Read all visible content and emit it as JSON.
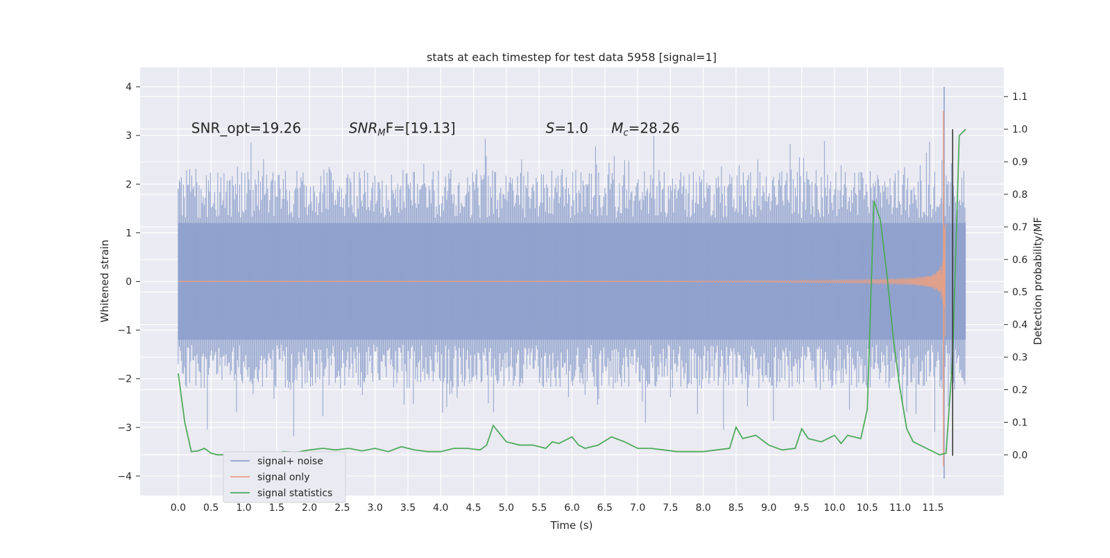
{
  "chart_data": {
    "type": "line",
    "title": "stats at each timestep for test data 5958 [signal=1]",
    "xlabel": "Time (s)",
    "ylabel": "Whitened strain",
    "y2label": "Detection probability/MF",
    "xlim": [
      -0.58,
      12.58
    ],
    "ylim": [
      -4.4,
      4.4
    ],
    "y2lim": [
      -0.125,
      1.19
    ],
    "grid": true,
    "legend_position": "lower-left",
    "x_ticks": [
      "0.0",
      "0.5",
      "1.0",
      "1.5",
      "2.0",
      "2.5",
      "3.0",
      "3.5",
      "4.0",
      "4.5",
      "5.0",
      "5.5",
      "6.0",
      "6.5",
      "7.0",
      "7.5",
      "8.0",
      "8.5",
      "9.0",
      "9.5",
      "10.0",
      "10.5",
      "11.0",
      "11.5"
    ],
    "y_ticks": [
      "4",
      "3",
      "2",
      "1",
      "0",
      "−1",
      "−2",
      "−3",
      "−4"
    ],
    "y2_ticks": [
      "1.1",
      "1.0",
      "0.9",
      "0.8",
      "0.7",
      "0.6",
      "0.5",
      "0.4",
      "0.3",
      "0.2",
      "0.1",
      "0.0"
    ],
    "annotations": [
      {
        "id": "snr-opt",
        "text": "SNR_opt=19.26",
        "x": 0.2,
        "y": 3.15
      },
      {
        "id": "snr-mf",
        "prefix": "SNR",
        "sub": "M",
        "suffix": "F=[19.13]",
        "x": 2.6,
        "y": 3.15
      },
      {
        "id": "s-value",
        "prefix": "S",
        "suffix": "=1.0",
        "x": 5.6,
        "y": 3.15
      },
      {
        "id": "mc-value",
        "prefix": "M",
        "sub": "c",
        "suffix": "=28.26",
        "x": 6.6,
        "y": 3.15
      }
    ],
    "vline": {
      "x": 11.8,
      "y2_from": -0.003,
      "y2_to": 1.0
    },
    "series": [
      {
        "name": "signal+ noise",
        "color": "#8da0cb",
        "amplitude_core": 1.2,
        "max": 4.0,
        "min": -4.05
      },
      {
        "name": "signal only",
        "color": "#e8a085",
        "peak": 3.5,
        "trough": -3.8
      },
      {
        "name": "signal statistics",
        "color": "#4daa5b",
        "axis": "right",
        "x": [
          0.0,
          0.1,
          0.2,
          0.3,
          0.4,
          0.5,
          0.6,
          0.8,
          1.0,
          1.2,
          1.4,
          1.6,
          1.8,
          2.0,
          2.2,
          2.4,
          2.6,
          2.8,
          3.0,
          3.2,
          3.4,
          3.6,
          3.8,
          4.0,
          4.2,
          4.4,
          4.6,
          4.7,
          4.8,
          5.0,
          5.2,
          5.4,
          5.6,
          5.7,
          5.8,
          6.0,
          6.1,
          6.2,
          6.4,
          6.6,
          6.8,
          7.0,
          7.2,
          7.4,
          7.6,
          7.8,
          8.0,
          8.2,
          8.4,
          8.5,
          8.6,
          8.8,
          9.0,
          9.2,
          9.4,
          9.5,
          9.6,
          9.8,
          10.0,
          10.1,
          10.2,
          10.4,
          10.5,
          10.6,
          10.7,
          10.8,
          10.9,
          11.0,
          11.1,
          11.2,
          11.4,
          11.6,
          11.7,
          11.8,
          11.9,
          12.0
        ],
        "y": [
          0.25,
          0.1,
          0.01,
          0.012,
          0.02,
          0.005,
          0.0,
          0.0,
          0.0,
          0.002,
          0.0,
          0.01,
          0.008,
          0.015,
          0.02,
          0.015,
          0.02,
          0.012,
          0.02,
          0.01,
          0.025,
          0.015,
          0.01,
          0.01,
          0.02,
          0.02,
          0.015,
          0.03,
          0.09,
          0.04,
          0.03,
          0.03,
          0.02,
          0.04,
          0.035,
          0.055,
          0.03,
          0.02,
          0.03,
          0.055,
          0.04,
          0.02,
          0.02,
          0.015,
          0.01,
          0.01,
          0.01,
          0.015,
          0.02,
          0.085,
          0.05,
          0.06,
          0.03,
          0.015,
          0.02,
          0.08,
          0.05,
          0.04,
          0.06,
          0.035,
          0.06,
          0.05,
          0.14,
          0.78,
          0.72,
          0.55,
          0.35,
          0.2,
          0.08,
          0.04,
          0.02,
          0.0,
          0.005,
          0.3,
          0.98,
          1.0
        ]
      }
    ]
  }
}
